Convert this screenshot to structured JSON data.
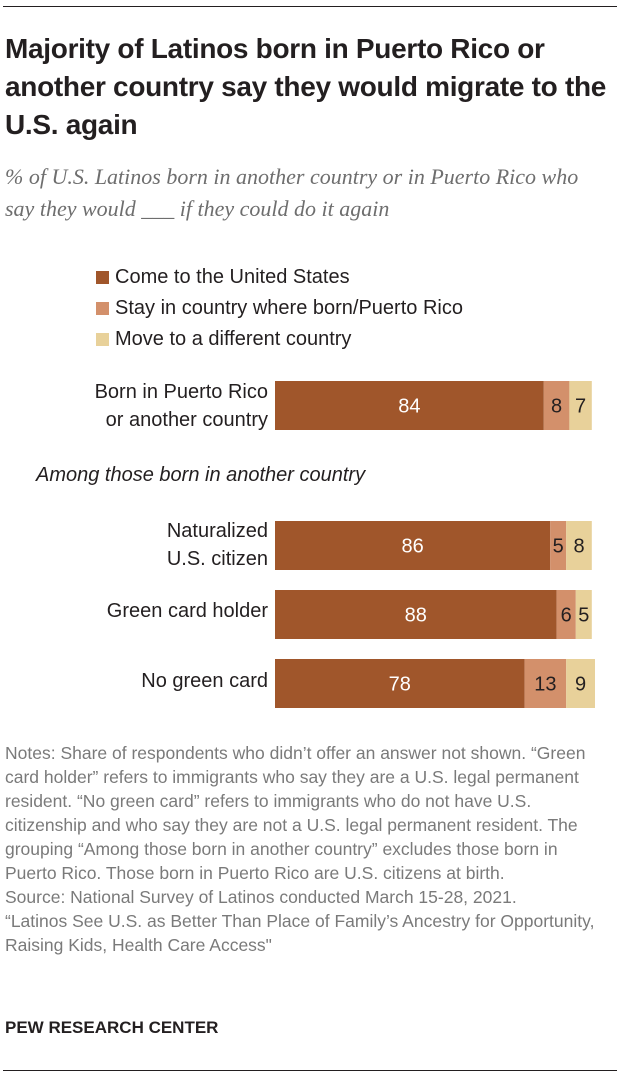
{
  "title": "Majority of Latinos born in Puerto Rico or another country say they would migrate to the U.S. again",
  "subtitle": "% of U.S. Latinos born in another country or in Puerto Rico who say they would ___ if they could do it again",
  "legend": [
    {
      "label": "Come to the United States",
      "color": "#a0562b"
    },
    {
      "label": "Stay in country where born/Puerto Rico",
      "color": "#d3906b"
    },
    {
      "label": "Move to a different country",
      "color": "#e8d19a"
    }
  ],
  "group_label": "Among those born in another country",
  "row_labels": {
    "r0_line1": "Born in Puerto Rico",
    "r0_line2": "or another country",
    "r1_line1": "Naturalized",
    "r1_line2": "U.S. citizen",
    "r2": "Green card holder",
    "r3": "No green card"
  },
  "chart_data": {
    "type": "bar",
    "orientation": "horizontal",
    "stacked": true,
    "categories": [
      "Born in Puerto Rico or another country",
      "Naturalized U.S. citizen",
      "Green card holder",
      "No green card"
    ],
    "series": [
      {
        "name": "Come to the United States",
        "values": [
          84,
          86,
          88,
          78
        ],
        "color": "#a0562b"
      },
      {
        "name": "Stay in country where born/Puerto Rico",
        "values": [
          8,
          5,
          6,
          13
        ],
        "color": "#d3906b"
      },
      {
        "name": "Move to a different country",
        "values": [
          7,
          8,
          5,
          9
        ],
        "color": "#e8d19a"
      }
    ],
    "xlim": [
      0,
      100
    ]
  },
  "notes": {
    "line1": "Notes: Share of respondents who didn’t offer an answer not shown. “Green card holder” refers to immigrants who say they are a U.S. legal permanent resident. “No green card” refers to immigrants who do not have U.S. citizenship and who say they are not a U.S. legal permanent resident. The grouping “Among those born in another country” excludes those born in Puerto Rico. Those born in Puerto Rico are U.S. citizens at birth.",
    "source": "Source: National Survey of Latinos conducted March 15-28, 2021.",
    "report": "“Latinos See U.S. as Better Than Place of Family’s Ancestry for Opportunity, Raising Kids, Health Care Access\""
  },
  "brand": "PEW RESEARCH CENTER"
}
